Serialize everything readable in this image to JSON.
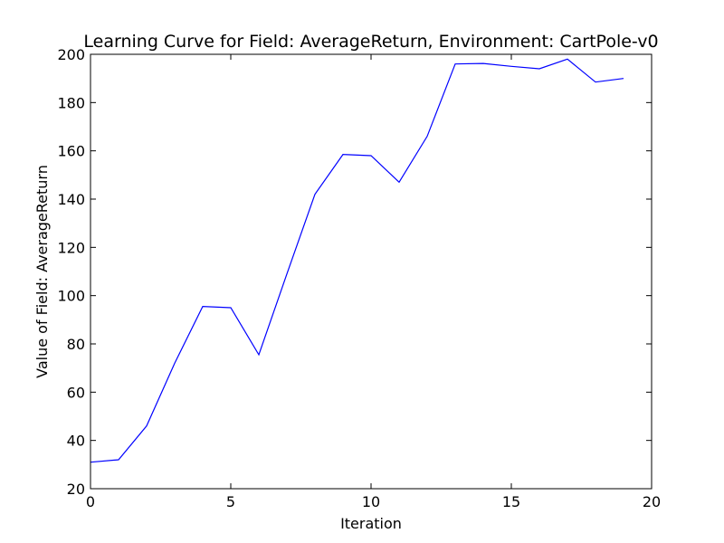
{
  "chart_data": {
    "type": "line",
    "title": "Learning Curve for Field: AverageReturn, Environment: CartPole-v0",
    "xlabel": "Iteration",
    "ylabel": "Value of Field: AverageReturn",
    "xlim": [
      0,
      20
    ],
    "ylim": [
      20,
      200
    ],
    "xticks": [
      0,
      5,
      10,
      15,
      20
    ],
    "yticks": [
      20,
      40,
      60,
      80,
      100,
      120,
      140,
      160,
      180,
      200
    ],
    "grid": false,
    "series": [
      {
        "color": "#0000ff",
        "x": [
          0,
          1,
          2,
          3,
          4,
          5,
          6,
          7,
          8,
          9,
          10,
          11,
          12,
          13,
          14,
          15,
          16,
          17,
          18,
          19
        ],
        "y": [
          31,
          32,
          46,
          72,
          95.5,
          95,
          75.5,
          109,
          142,
          158.5,
          158,
          147,
          166,
          196,
          196.2,
          195,
          194,
          198,
          188.5,
          190
        ]
      }
    ]
  }
}
